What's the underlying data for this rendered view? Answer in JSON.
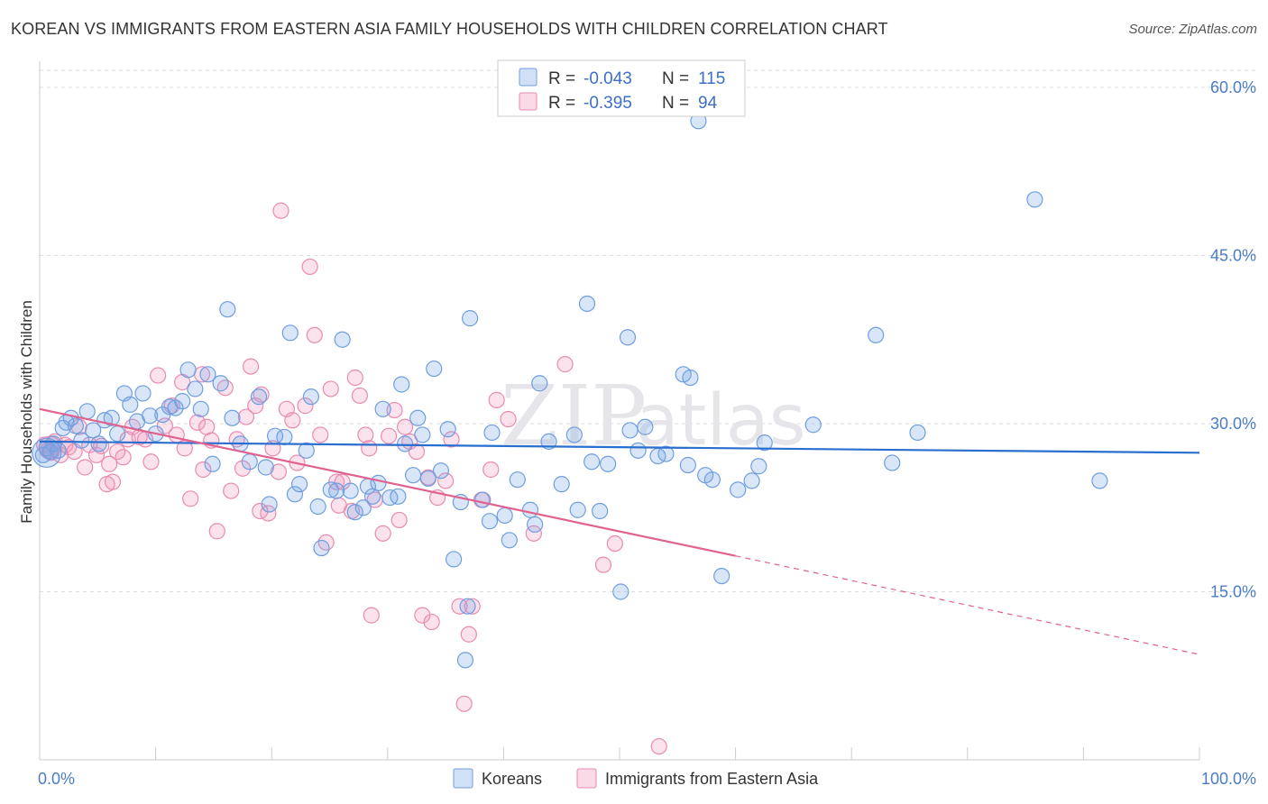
{
  "title": "KOREAN VS IMMIGRANTS FROM EASTERN ASIA FAMILY HOUSEHOLDS WITH CHILDREN CORRELATION CHART",
  "source": "Source: ZipAtlas.com",
  "watermark": {
    "zip": "ZIP",
    "atlas": "atlas"
  },
  "colors": {
    "korean_fill": "rgba(120,165,230,0.28)",
    "korean_stroke": "#6f9ee0",
    "korean_line": "#2a6fcf",
    "immig_fill": "rgba(240,150,185,0.28)",
    "immig_stroke": "#e98bb0",
    "immig_line": "#e0628f",
    "grid": "#dddddd",
    "tick_text": "#4a7cc7"
  },
  "legend": {
    "korean": {
      "r_label": "R = ",
      "r_value": "-0.043",
      "n_label": "N = ",
      "n_value": "115"
    },
    "immig": {
      "r_label": "R = ",
      "r_value": "-0.395",
      "n_label": "N = ",
      "n_value": "94"
    }
  },
  "chart_data": {
    "type": "scatter",
    "title": "KOREAN VS IMMIGRANTS FROM EASTERN ASIA FAMILY HOUSEHOLDS WITH CHILDREN CORRELATION CHART",
    "xlabel": "",
    "ylabel": "Family Households with Children",
    "xlim": [
      0,
      100
    ],
    "ylim": [
      0,
      60
    ],
    "x_tick_labels": [
      "0.0%",
      "100.0%"
    ],
    "y_ticks": [
      15,
      30,
      45,
      60
    ],
    "y_tick_labels": [
      "15.0%",
      "30.0%",
      "45.0%",
      "60.0%"
    ],
    "legend_position": "top-center",
    "series": [
      {
        "name": "Koreans",
        "trend": {
          "x": [
            0,
            100
          ],
          "y": [
            28.4,
            27.4
          ]
        },
        "points": [
          [
            0.3,
            27.2
          ],
          [
            0.6,
            27.8
          ],
          [
            0.9,
            27.5
          ],
          [
            1.2,
            28.2
          ],
          [
            1.6,
            27.6
          ],
          [
            2.0,
            29.6
          ],
          [
            2.3,
            30.1
          ],
          [
            2.7,
            30.5
          ],
          [
            3.1,
            29.8
          ],
          [
            3.6,
            28.5
          ],
          [
            4.1,
            31.1
          ],
          [
            4.6,
            29.4
          ],
          [
            5.1,
            28.2
          ],
          [
            5.6,
            30.3
          ],
          [
            6.2,
            30.5
          ],
          [
            6.7,
            29.1
          ],
          [
            7.3,
            32.7
          ],
          [
            7.8,
            31.7
          ],
          [
            8.4,
            30.2
          ],
          [
            8.9,
            32.7
          ],
          [
            9.5,
            30.7
          ],
          [
            10.0,
            29.1
          ],
          [
            10.6,
            30.8
          ],
          [
            11.2,
            31.5
          ],
          [
            11.7,
            31.4
          ],
          [
            12.3,
            32.0
          ],
          [
            12.8,
            34.8
          ],
          [
            13.4,
            33.1
          ],
          [
            13.9,
            31.3
          ],
          [
            14.5,
            34.4
          ],
          [
            14.9,
            26.4
          ],
          [
            15.6,
            33.6
          ],
          [
            16.2,
            40.2
          ],
          [
            16.6,
            30.5
          ],
          [
            17.3,
            28.2
          ],
          [
            18.1,
            26.6
          ],
          [
            18.9,
            32.4
          ],
          [
            19.5,
            26.1
          ],
          [
            19.8,
            22.8
          ],
          [
            20.3,
            28.9
          ],
          [
            21.1,
            28.8
          ],
          [
            21.6,
            38.1
          ],
          [
            22.0,
            23.7
          ],
          [
            22.4,
            24.6
          ],
          [
            23.0,
            27.6
          ],
          [
            23.4,
            32.4
          ],
          [
            24.0,
            22.6
          ],
          [
            24.3,
            18.9
          ],
          [
            25.1,
            24.1
          ],
          [
            25.6,
            24.0
          ],
          [
            26.1,
            37.5
          ],
          [
            26.8,
            24.0
          ],
          [
            27.2,
            22.1
          ],
          [
            27.9,
            22.5
          ],
          [
            28.3,
            24.4
          ],
          [
            28.7,
            23.5
          ],
          [
            29.2,
            24.7
          ],
          [
            29.6,
            31.3
          ],
          [
            30.2,
            23.4
          ],
          [
            30.9,
            23.5
          ],
          [
            31.2,
            33.5
          ],
          [
            31.5,
            28.2
          ],
          [
            32.2,
            25.4
          ],
          [
            32.6,
            30.5
          ],
          [
            33.0,
            29.0
          ],
          [
            33.5,
            25.1
          ],
          [
            34.0,
            34.9
          ],
          [
            34.6,
            25.8
          ],
          [
            35.2,
            29.5
          ],
          [
            35.7,
            17.9
          ],
          [
            36.3,
            23.0
          ],
          [
            36.9,
            13.7
          ],
          [
            36.7,
            8.9
          ],
          [
            37.1,
            39.4
          ],
          [
            38.2,
            23.2
          ],
          [
            38.8,
            21.3
          ],
          [
            39.0,
            29.2
          ],
          [
            40.1,
            21.8
          ],
          [
            40.5,
            19.6
          ],
          [
            41.2,
            25.0
          ],
          [
            42.3,
            22.3
          ],
          [
            42.7,
            21.0
          ],
          [
            43.1,
            33.6
          ],
          [
            45.0,
            24.6
          ],
          [
            46.1,
            29.0
          ],
          [
            46.4,
            22.3
          ],
          [
            47.2,
            40.7
          ],
          [
            47.6,
            26.6
          ],
          [
            48.3,
            22.2
          ],
          [
            49.0,
            26.4
          ],
          [
            50.1,
            15.0
          ],
          [
            50.7,
            37.7
          ],
          [
            50.9,
            29.4
          ],
          [
            51.6,
            27.6
          ],
          [
            52.2,
            29.7
          ],
          [
            53.3,
            27.1
          ],
          [
            54.0,
            27.3
          ],
          [
            55.5,
            34.4
          ],
          [
            55.9,
            26.3
          ],
          [
            56.1,
            34.1
          ],
          [
            57.4,
            25.4
          ],
          [
            58.0,
            25.0
          ],
          [
            58.8,
            16.4
          ],
          [
            60.2,
            24.1
          ],
          [
            61.4,
            24.9
          ],
          [
            62.0,
            26.2
          ],
          [
            62.5,
            28.3
          ],
          [
            66.7,
            29.9
          ],
          [
            72.1,
            37.9
          ],
          [
            73.5,
            26.5
          ],
          [
            75.7,
            29.2
          ],
          [
            85.8,
            50.0
          ],
          [
            91.4,
            24.9
          ],
          [
            56.8,
            57.0
          ],
          [
            43.9,
            28.4
          ]
        ]
      },
      {
        "name": "Immigrants from Eastern Asia",
        "trend": {
          "x": [
            0,
            60
          ],
          "y": [
            31.3,
            18.2
          ]
        },
        "trend_extended": {
          "x": [
            60,
            100
          ],
          "y": [
            18.2,
            9.4
          ]
        },
        "points": [
          [
            0.4,
            28.1
          ],
          [
            0.7,
            27.6
          ],
          [
            1.0,
            27.4
          ],
          [
            1.3,
            28.4
          ],
          [
            1.8,
            27.2
          ],
          [
            2.2,
            28.1
          ],
          [
            2.5,
            27.9
          ],
          [
            3.0,
            27.5
          ],
          [
            3.4,
            29.7
          ],
          [
            3.9,
            26.1
          ],
          [
            4.3,
            28.1
          ],
          [
            4.9,
            27.2
          ],
          [
            5.3,
            28.0
          ],
          [
            5.8,
            24.6
          ],
          [
            6.3,
            24.8
          ],
          [
            6.7,
            27.5
          ],
          [
            7.2,
            27.0
          ],
          [
            7.6,
            28.6
          ],
          [
            8.0,
            29.7
          ],
          [
            8.6,
            28.8
          ],
          [
            9.1,
            28.6
          ],
          [
            9.6,
            26.6
          ],
          [
            10.2,
            34.3
          ],
          [
            10.8,
            29.8
          ],
          [
            11.4,
            31.6
          ],
          [
            11.8,
            29.0
          ],
          [
            12.3,
            33.7
          ],
          [
            12.5,
            27.8
          ],
          [
            13.0,
            23.3
          ],
          [
            13.6,
            30.1
          ],
          [
            14.0,
            34.4
          ],
          [
            14.4,
            29.7
          ],
          [
            14.8,
            28.5
          ],
          [
            15.3,
            20.4
          ],
          [
            16.0,
            33.2
          ],
          [
            16.5,
            24.0
          ],
          [
            17.0,
            28.6
          ],
          [
            17.5,
            26.0
          ],
          [
            17.8,
            30.6
          ],
          [
            18.2,
            35.1
          ],
          [
            18.6,
            31.6
          ],
          [
            19.1,
            32.6
          ],
          [
            19.7,
            22.0
          ],
          [
            20.1,
            27.8
          ],
          [
            20.6,
            25.7
          ],
          [
            20.8,
            49.0
          ],
          [
            21.3,
            31.3
          ],
          [
            21.8,
            30.3
          ],
          [
            22.2,
            26.5
          ],
          [
            22.9,
            31.6
          ],
          [
            23.3,
            44.0
          ],
          [
            23.7,
            37.9
          ],
          [
            24.2,
            29.0
          ],
          [
            24.7,
            19.4
          ],
          [
            25.1,
            33.1
          ],
          [
            25.6,
            24.8
          ],
          [
            26.1,
            24.8
          ],
          [
            26.9,
            22.2
          ],
          [
            27.2,
            34.1
          ],
          [
            27.6,
            32.5
          ],
          [
            28.1,
            29.0
          ],
          [
            28.6,
            12.9
          ],
          [
            28.9,
            23.2
          ],
          [
            29.6,
            20.2
          ],
          [
            30.1,
            28.9
          ],
          [
            30.6,
            31.2
          ],
          [
            31.0,
            21.4
          ],
          [
            31.5,
            29.7
          ],
          [
            31.9,
            28.4
          ],
          [
            32.5,
            27.5
          ],
          [
            33.0,
            12.9
          ],
          [
            33.5,
            25.2
          ],
          [
            33.8,
            12.3
          ],
          [
            34.3,
            23.4
          ],
          [
            35.0,
            24.9
          ],
          [
            35.5,
            28.6
          ],
          [
            36.2,
            13.7
          ],
          [
            36.6,
            5.0
          ],
          [
            37.0,
            11.2
          ],
          [
            37.3,
            13.7
          ],
          [
            38.1,
            23.2
          ],
          [
            38.9,
            25.9
          ],
          [
            39.4,
            32.1
          ],
          [
            40.4,
            30.4
          ],
          [
            42.6,
            20.2
          ],
          [
            45.3,
            35.3
          ],
          [
            48.6,
            17.4
          ],
          [
            49.6,
            19.3
          ],
          [
            53.4,
            1.2
          ],
          [
            25.8,
            22.7
          ],
          [
            19.0,
            22.2
          ],
          [
            28.4,
            27.8
          ],
          [
            6.0,
            26.4
          ],
          [
            14.1,
            25.9
          ]
        ]
      }
    ]
  },
  "bottom_legend": {
    "korean_label": "Koreans",
    "immig_label": "Immigrants from Eastern Asia"
  }
}
